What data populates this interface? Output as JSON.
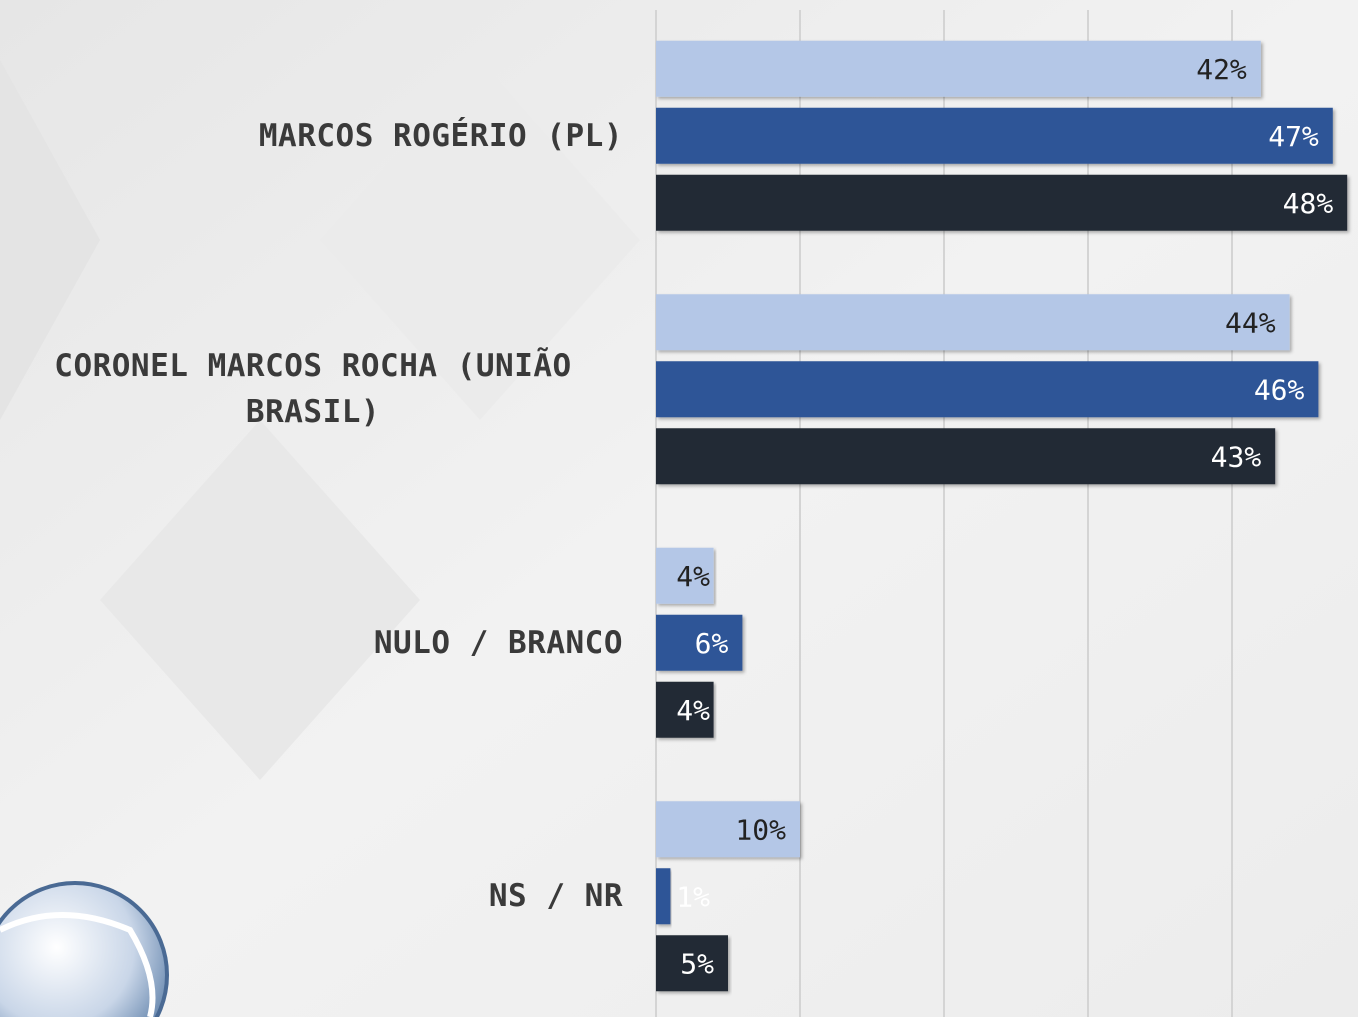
{
  "chart_data": {
    "type": "bar",
    "orientation": "horizontal",
    "categories": [
      "MARCOS ROGÉRIO (PL)",
      "CORONEL MARCOS ROCHA (UNIÃO BRASIL)",
      "NULO / BRANCO",
      "NS / NR"
    ],
    "series": [
      {
        "color": "#b4c7e7",
        "values": [
          42,
          44,
          4,
          10
        ],
        "value_labels": [
          "42%",
          "44%",
          "4%",
          "10%"
        ]
      },
      {
        "color": "#2f5597",
        "values": [
          47,
          46,
          6,
          1
        ],
        "value_labels": [
          "47%",
          "46%",
          "6%",
          "1%"
        ]
      },
      {
        "color": "#222a35",
        "values": [
          48,
          43,
          4,
          5
        ],
        "value_labels": [
          "48%",
          "43%",
          "4%",
          "5%"
        ]
      }
    ],
    "xlim": [
      0,
      48.75
    ],
    "xticks": [
      0,
      10,
      20,
      30,
      40
    ],
    "grid": true
  }
}
